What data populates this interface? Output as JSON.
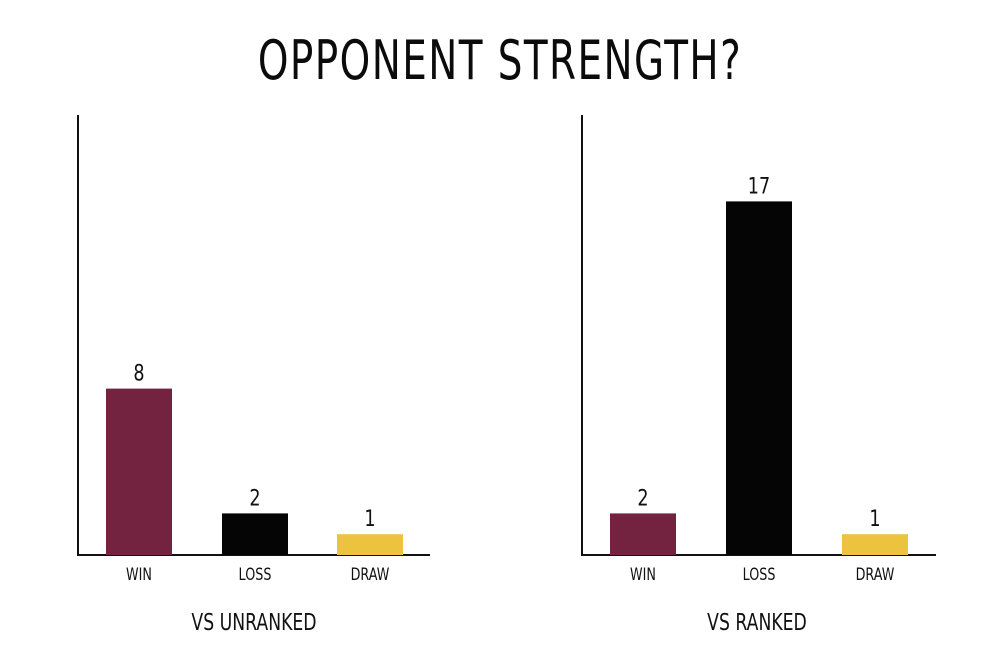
{
  "page": {
    "title": "OPPONENT STRENGTH?"
  },
  "colors": {
    "win": "#73223f",
    "loss": "#050505",
    "draw": "#ebc33f",
    "axis": "#111111",
    "text": "#111111"
  },
  "chart_data": [
    {
      "type": "bar",
      "title": "",
      "xlabel": "VS UNRANKED",
      "ylabel": "",
      "categories": [
        "WIN",
        "LOSS",
        "DRAW"
      ],
      "values": [
        8,
        2,
        1
      ],
      "data_labels": [
        "8",
        "2",
        "1"
      ],
      "ylim": [
        0,
        20
      ],
      "grid": false,
      "legend": "none"
    },
    {
      "type": "bar",
      "title": "",
      "xlabel": "VS RANKED",
      "ylabel": "",
      "categories": [
        "WIN",
        "LOSS",
        "DRAW"
      ],
      "values": [
        2,
        17,
        1
      ],
      "data_labels": [
        "2",
        "17",
        "1"
      ],
      "ylim": [
        0,
        20
      ],
      "grid": false,
      "legend": "none"
    }
  ]
}
